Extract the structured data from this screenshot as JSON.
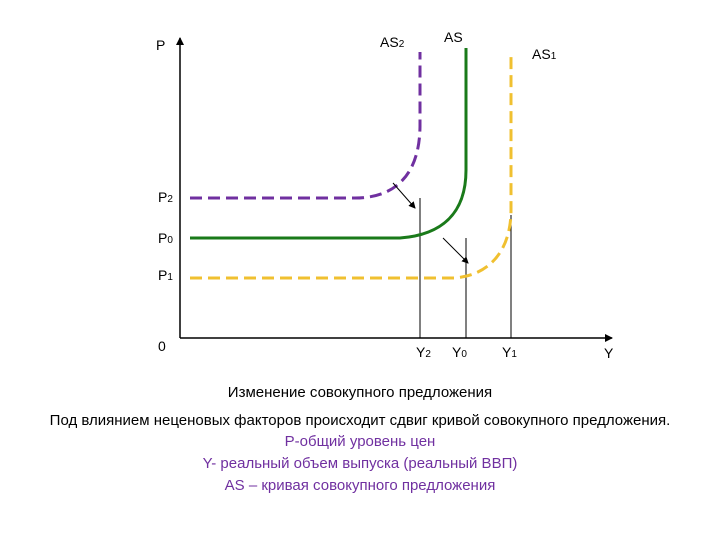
{
  "axes": {
    "y_axis": "P",
    "x_axis": "Y",
    "origin": "0"
  },
  "curves": [
    {
      "label": "AS",
      "sub": "2",
      "color": "#7030a0",
      "style": "dashed"
    },
    {
      "label": "AS",
      "sub": "",
      "color": "#1a7a1a",
      "style": "solid"
    },
    {
      "label": "AS",
      "sub": "1",
      "color": "#f0c030",
      "style": "dashed"
    }
  ],
  "price_levels": [
    {
      "label": "P",
      "sub": "2"
    },
    {
      "label": "P",
      "sub": "0"
    },
    {
      "label": "P",
      "sub": "1"
    }
  ],
  "output_levels": [
    {
      "label": "Y",
      "sub": "2"
    },
    {
      "label": "Y",
      "sub": "0"
    },
    {
      "label": "Y",
      "sub": "1"
    }
  ],
  "caption": {
    "title": "Изменение совокупного предложения",
    "description": "Под влиянием неценовых факторов происходит сдвиг кривой совокупного предложения.",
    "legend": [
      "P-общий уровень цен",
      "Y- реальный объем выпуска (реальный ВВП)",
      "AS – кривая совокупного предложения"
    ]
  }
}
